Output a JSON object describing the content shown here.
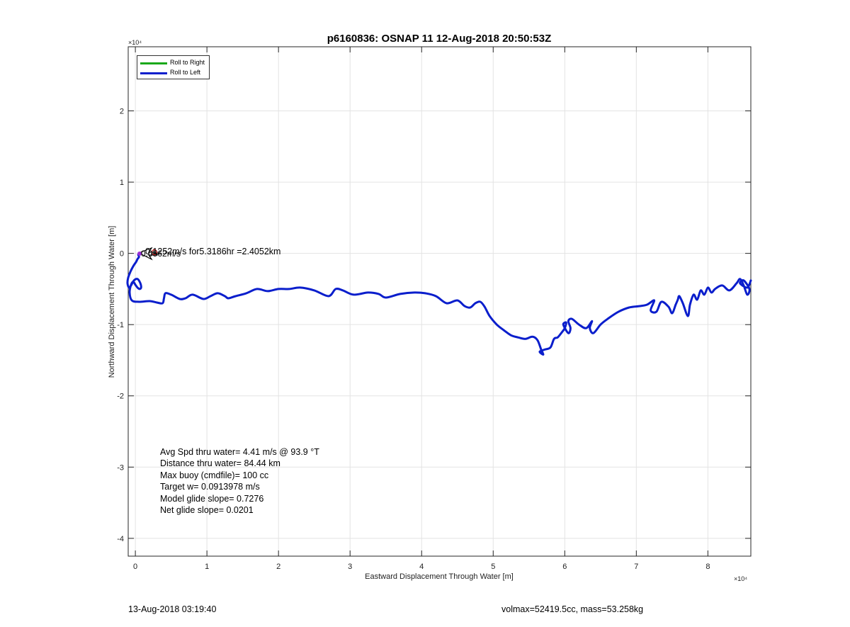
{
  "chart_data": {
    "type": "line",
    "title": "p6160836: OSNAP 11 12-Aug-2018 20:50:53Z",
    "xlabel": "Eastward Displacement Through Water [m]",
    "ylabel": "Northward Displacement Through Water [m]",
    "x_exponent_label": "×10⁴",
    "y_exponent_label": "×10⁴",
    "xlim": [
      -0.1,
      8.6
    ],
    "ylim": [
      -4.25,
      2.9
    ],
    "x_ticks": [
      0,
      1,
      2,
      3,
      4,
      5,
      6,
      7,
      8
    ],
    "y_ticks": [
      -4,
      -3,
      -2,
      -1,
      0,
      1,
      2
    ],
    "grid": true,
    "legend_position": "top-left",
    "series": [
      {
        "name": "Roll to Right",
        "color": "#1aa81a",
        "x": [],
        "y": []
      },
      {
        "name": "Roll to Left",
        "color": "#0a1ecc",
        "x": [
          0.04,
          0.05,
          0.03,
          0.01,
          -0.03,
          -0.07,
          -0.1,
          -0.11,
          -0.09,
          -0.06,
          -0.02,
          0.03,
          0.07,
          0.08,
          0.06,
          0.03,
          0.0,
          -0.03,
          -0.06,
          -0.08,
          -0.05,
          0.05,
          0.2,
          0.3,
          0.38,
          0.4,
          0.42,
          0.5,
          0.62,
          0.7,
          0.8,
          0.95,
          1.05,
          1.15,
          1.25,
          1.3,
          1.4,
          1.55,
          1.7,
          1.85,
          2.0,
          2.15,
          2.3,
          2.5,
          2.7,
          2.8,
          2.9,
          3.05,
          3.25,
          3.4,
          3.5,
          3.7,
          3.9,
          4.05,
          4.2,
          4.35,
          4.5,
          4.6,
          4.68,
          4.75,
          4.82,
          4.88,
          4.95,
          5.05,
          5.15,
          5.25,
          5.35,
          5.45,
          5.55,
          5.62,
          5.67,
          5.7,
          5.65,
          5.72,
          5.8,
          5.85,
          5.9,
          5.95,
          6.0,
          6.02,
          5.98,
          6.05,
          6.08,
          6.05,
          6.1,
          6.2,
          6.3,
          6.38,
          6.35,
          6.4,
          6.5,
          6.6,
          6.75,
          6.9,
          7.05,
          7.15,
          7.25,
          7.2,
          7.28,
          7.35,
          7.45,
          7.5,
          7.55,
          7.58,
          7.6,
          7.65,
          7.72,
          7.75,
          7.8,
          7.85,
          7.9,
          7.95,
          8.0,
          8.05,
          8.1,
          8.2,
          8.3,
          8.4,
          8.45,
          8.5,
          8.55,
          8.58,
          8.5,
          8.45,
          8.55,
          8.6
        ],
        "y": [
          -0.02,
          -0.05,
          -0.08,
          -0.12,
          -0.18,
          -0.26,
          -0.34,
          -0.42,
          -0.48,
          -0.45,
          -0.38,
          -0.36,
          -0.42,
          -0.48,
          -0.5,
          -0.48,
          -0.44,
          -0.4,
          -0.44,
          -0.55,
          -0.66,
          -0.68,
          -0.67,
          -0.69,
          -0.7,
          -0.63,
          -0.56,
          -0.58,
          -0.64,
          -0.63,
          -0.58,
          -0.64,
          -0.6,
          -0.56,
          -0.6,
          -0.63,
          -0.6,
          -0.56,
          -0.5,
          -0.53,
          -0.5,
          -0.5,
          -0.48,
          -0.52,
          -0.6,
          -0.5,
          -0.52,
          -0.58,
          -0.55,
          -0.57,
          -0.62,
          -0.57,
          -0.55,
          -0.56,
          -0.6,
          -0.7,
          -0.66,
          -0.74,
          -0.76,
          -0.7,
          -0.68,
          -0.75,
          -0.88,
          -1.0,
          -1.08,
          -1.15,
          -1.18,
          -1.2,
          -1.17,
          -1.22,
          -1.35,
          -1.42,
          -1.38,
          -1.35,
          -1.32,
          -1.2,
          -1.18,
          -1.12,
          -1.05,
          -0.97,
          -1.0,
          -1.12,
          -1.05,
          -0.95,
          -0.92,
          -1.0,
          -1.05,
          -0.95,
          -1.05,
          -1.12,
          -1.0,
          -0.92,
          -0.82,
          -0.76,
          -0.74,
          -0.72,
          -0.66,
          -0.8,
          -0.82,
          -0.68,
          -0.75,
          -0.84,
          -0.72,
          -0.65,
          -0.6,
          -0.7,
          -0.88,
          -0.72,
          -0.58,
          -0.65,
          -0.52,
          -0.58,
          -0.48,
          -0.55,
          -0.5,
          -0.45,
          -0.52,
          -0.42,
          -0.36,
          -0.45,
          -0.58,
          -0.5,
          -0.38,
          -0.42,
          -0.48,
          -0.38
        ]
      }
    ],
    "annotation": "0.1252m/s for5.3186hr =2.4052km",
    "annotation_overlap_text": "0.0562m/s"
  },
  "stats": [
    "Avg Spd thru water=  4.41 m/s @  93.9 °T",
    "Distance thru water= 84.44 km",
    "Max buoy (cmdfile)= 100 cc",
    "Target w= 0.0913978 m/s",
    "Model glide slope= 0.7276",
    "Net glide slope= 0.0201"
  ],
  "footer": {
    "timestamp": "13-Aug-2018 03:19:40",
    "vol_mass": "volmax=52419.5cc, mass=53.258kg"
  }
}
